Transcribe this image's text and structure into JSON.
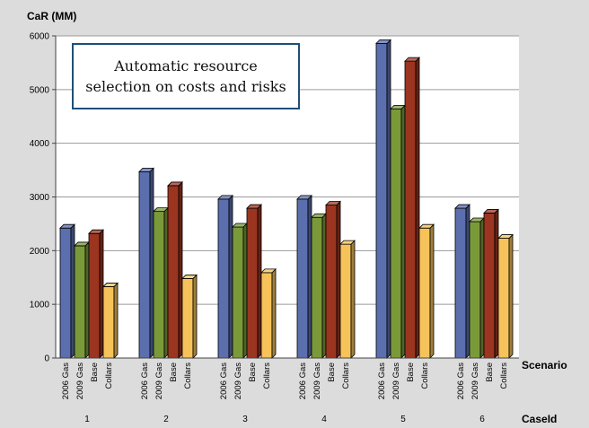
{
  "chart_data": {
    "type": "bar",
    "ylabel": "CaR (MM)",
    "ylim": [
      0,
      6000
    ],
    "yticks": [
      0,
      1000,
      2000,
      3000,
      4000,
      5000,
      6000
    ],
    "grid": true,
    "title_lines": [
      "Automatic resource",
      "selection on costs and risks"
    ],
    "xlabel_scenario": "Scenario",
    "xlabel_case": "CaseId",
    "scenario_labels": [
      "2006 Gas",
      "2009 Gas",
      "Base",
      "Collars"
    ],
    "categories": [
      "1",
      "2",
      "3",
      "4",
      "5",
      "6"
    ],
    "series": [
      {
        "name": "2006 Gas",
        "color": "#5b6fae",
        "values": [
          2420,
          3470,
          2960,
          2960,
          5860,
          2790
        ]
      },
      {
        "name": "2009 Gas",
        "color": "#7a9a3a",
        "values": [
          2090,
          2730,
          2440,
          2620,
          4640,
          2540
        ]
      },
      {
        "name": "Base",
        "color": "#9c3520",
        "values": [
          2320,
          3210,
          2790,
          2850,
          5530,
          2700
        ]
      },
      {
        "name": "Collars",
        "color": "#f6c35a",
        "values": [
          1330,
          1480,
          1590,
          2120,
          2420,
          2230
        ]
      }
    ]
  }
}
